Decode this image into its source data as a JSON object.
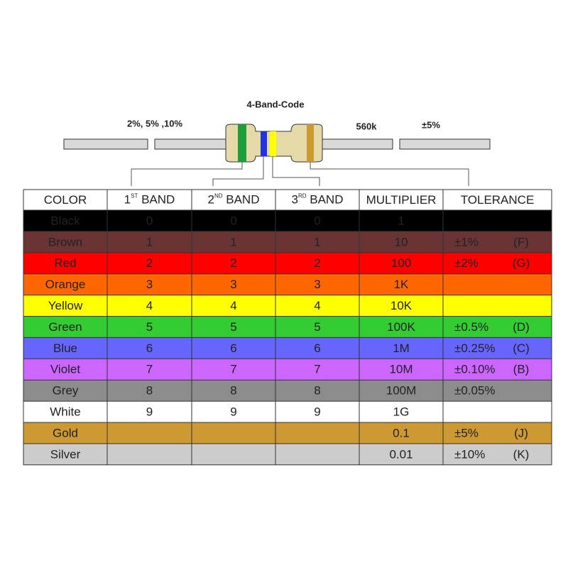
{
  "title": "4-Band-Code",
  "labels": {
    "band_digits_tolerance": "2%, 5% ,10%",
    "value": "560k",
    "tolerance": "±5%"
  },
  "table": {
    "header": [
      {
        "text": "COLOR"
      },
      {
        "main": "1",
        "sup": "ST",
        "rest": " BAND"
      },
      {
        "main": "2",
        "sup": "ND",
        "rest": " BAND"
      },
      {
        "main": "3",
        "sup": "RD",
        "rest": " BAND"
      },
      {
        "text": "MULTIPLIER"
      },
      {
        "text": "TOLERANCE"
      }
    ],
    "rows": [
      {
        "color": "Black",
        "fill": "#000000",
        "text_color": "#ffffff",
        "bands": [
          "0",
          "0",
          "0"
        ],
        "multiplier": "1"
      },
      {
        "color": "Brown",
        "fill": "#6b3434",
        "text_color": "#ffffff",
        "bands": [
          "1",
          "1",
          "1"
        ],
        "multiplier": "10",
        "tolerance": "±1%",
        "code": "(F)"
      },
      {
        "color": "Red",
        "fill": "#ff0000",
        "text_color": "#5a0000",
        "bands": [
          "2",
          "2",
          "2"
        ],
        "multiplier": "100",
        "tolerance": "±2%",
        "code": "(G)"
      },
      {
        "color": "Orange",
        "fill": "#ff6600",
        "text_color": "#222222",
        "bands": [
          "3",
          "3",
          "3"
        ],
        "multiplier": "1K"
      },
      {
        "color": "Yellow",
        "fill": "#ffff00",
        "text_color": "#222222",
        "bands": [
          "4",
          "4",
          "4"
        ],
        "multiplier": "10K"
      },
      {
        "color": "Green",
        "fill": "#33cc33",
        "text_color": "#222222",
        "bands": [
          "5",
          "5",
          "5"
        ],
        "multiplier": "100K",
        "tolerance": "±0.5%",
        "code": "(D)"
      },
      {
        "color": "Blue",
        "fill": "#6666ff",
        "text_color": "#222222",
        "bands": [
          "6",
          "6",
          "6"
        ],
        "multiplier": "1M",
        "tolerance": "±0.25%",
        "code": "(C)"
      },
      {
        "color": "Violet",
        "fill": "#cc66ff",
        "text_color": "#222222",
        "bands": [
          "7",
          "7",
          "7"
        ],
        "multiplier": "10M",
        "tolerance": "±0.10%",
        "code": "(B)"
      },
      {
        "color": "Grey",
        "fill": "#8c8c8c",
        "text_color": "#222222",
        "bands": [
          "8",
          "8",
          "8"
        ],
        "multiplier": "100M",
        "tolerance": "±0.05%"
      },
      {
        "color": "White",
        "fill": "#ffffff",
        "text_color": "#222222",
        "bands": [
          "9",
          "9",
          "9"
        ],
        "multiplier": "1G"
      },
      {
        "color": "Gold",
        "fill": "#cc9933",
        "text_color": "#222222",
        "multiplier": "0.1",
        "tolerance": "±5%",
        "code": "(J)"
      },
      {
        "color": "Silver",
        "fill": "#cccccc",
        "text_color": "#222222",
        "multiplier": "0.01",
        "tolerance": "±10%",
        "code": "(K)"
      }
    ]
  }
}
